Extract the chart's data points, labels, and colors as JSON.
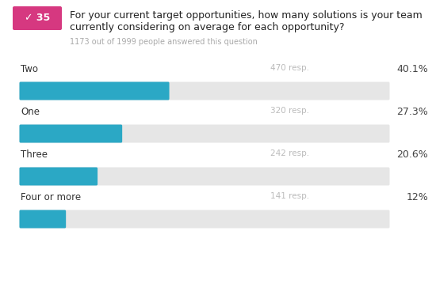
{
  "question_number": "35",
  "question_line1": "For your current target opportunities, how many solutions is your team",
  "question_line2": "currently considering on average for each opportunity?",
  "subtitle": "1173 out of 1999 people answered this question",
  "categories": [
    "Two",
    "One",
    "Three",
    "Four or more"
  ],
  "responses": [
    470,
    320,
    242,
    141
  ],
  "percentages": [
    40.1,
    27.3,
    20.6,
    12.0
  ],
  "pct_labels": [
    "40.1%",
    "27.3%",
    "20.6%",
    "12%"
  ],
  "bar_color": "#2ba8c5",
  "bg_bar_color": "#e6e6e6",
  "badge_color": "#d63880",
  "badge_text_color": "#ffffff",
  "title_color": "#222222",
  "subtitle_color": "#aaaaaa",
  "label_color": "#333333",
  "resp_color": "#bbbbbb",
  "pct_color": "#444444",
  "background_color": "#ffffff"
}
